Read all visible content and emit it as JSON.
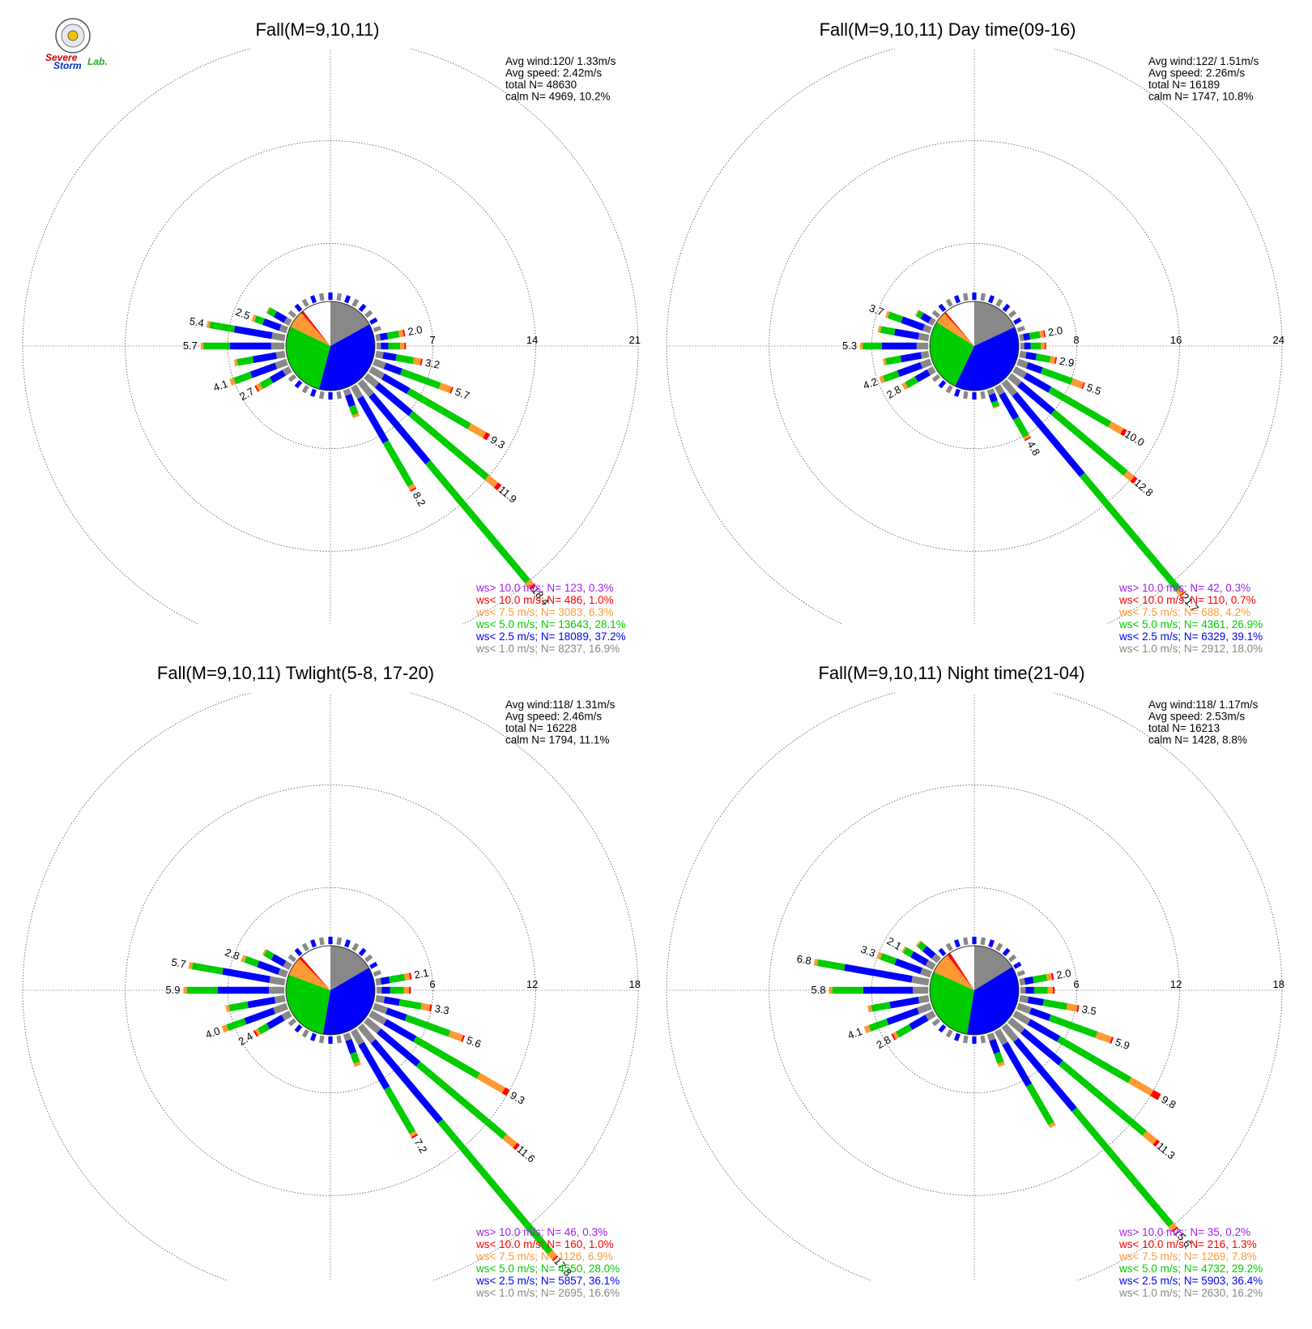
{
  "logo": {
    "line1": "Severe",
    "line2": "Storm",
    "line3": "Lab."
  },
  "chart_data": [
    {
      "type": "wind-rose",
      "title": "Fall(M=9,10,11)",
      "stats": [
        "Avg wind:120/ 1.33m/s",
        "Avg speed: 2.42m/s",
        "total N=      48630",
        "calm N=   4969,  10.2%"
      ],
      "rings": [
        7,
        14,
        21
      ],
      "ring_labels": [
        "7",
        "14",
        "21"
      ],
      "rmax": 21,
      "pie": [
        {
          "category": "gray",
          "fraction": 0.169
        },
        {
          "category": "blue",
          "fraction": 0.372
        },
        {
          "category": "green",
          "fraction": 0.281
        },
        {
          "category": "orange",
          "fraction": 0.063
        },
        {
          "category": "red",
          "fraction": 0.01
        },
        {
          "category": "white",
          "fraction": 0.105
        }
      ],
      "directions_deg": [
        80,
        90,
        100,
        110,
        120,
        130,
        140,
        150,
        160,
        240,
        250,
        260,
        270,
        280,
        290,
        300
      ],
      "totals": [
        2.0,
        2.0,
        3.2,
        5.7,
        9.3,
        11.9,
        18.4,
        8.2,
        2.0,
        2.7,
        4.1,
        3.5,
        5.7,
        5.4,
        2.5,
        1.8
      ],
      "bar_labels": [
        "2.0",
        "",
        "3.2",
        "5.7",
        "9.3",
        "11.9",
        "18.4",
        "8.2",
        "",
        "2.7",
        "4.1",
        "",
        "5.7",
        "5.4",
        "2.5",
        ""
      ],
      "segments": [
        [
          0.3,
          0.5,
          0.8,
          0.3,
          0.1,
          0
        ],
        [
          0.3,
          0.5,
          0.8,
          0.3,
          0.1,
          0
        ],
        [
          0.5,
          0.9,
          1.2,
          0.5,
          0.1,
          0
        ],
        [
          0.8,
          1.2,
          2.8,
          0.8,
          0.1,
          0
        ],
        [
          1.0,
          2.0,
          4.8,
          1.2,
          0.3,
          0
        ],
        [
          1.0,
          3.0,
          6.8,
          0.8,
          0.3,
          0
        ],
        [
          1.2,
          6.0,
          10.6,
          0.4,
          0.2,
          0
        ],
        [
          0.9,
          3.5,
          3.4,
          0.3,
          0.1,
          0
        ],
        [
          0.4,
          0.8,
          0.6,
          0.2,
          0,
          0
        ],
        [
          0.5,
          1.0,
          0.8,
          0.3,
          0.1,
          0
        ],
        [
          0.8,
          1.8,
          1.2,
          0.3,
          0,
          0
        ],
        [
          0.6,
          1.6,
          1.1,
          0.2,
          0,
          0
        ],
        [
          0.9,
          2.8,
          1.8,
          0.2,
          0,
          0
        ],
        [
          0.9,
          2.6,
          1.7,
          0.2,
          0,
          0
        ],
        [
          0.5,
          1.2,
          0.6,
          0.2,
          0,
          0
        ],
        [
          0.4,
          0.8,
          0.5,
          0.1,
          0,
          0
        ]
      ],
      "legend": [
        {
          "text": "ws> 10.0 m/s; N=   123,  0.3%",
          "color": "#a020f0"
        },
        {
          "text": "ws< 10.0 m/s; N=   486,  1.0%",
          "color": "#ff0000"
        },
        {
          "text": "ws<  7.5 m/s; N=  3083,  6.3%",
          "color": "#ff9933"
        },
        {
          "text": "ws<  5.0 m/s; N= 13643, 28.1%",
          "color": "#00cc00"
        },
        {
          "text": "ws<  2.5 m/s; N= 18089, 37.2%",
          "color": "#0000ff"
        },
        {
          "text": "ws<  1.0 m/s; N=  8237, 16.9%",
          "color": "#888888"
        }
      ]
    },
    {
      "type": "wind-rose",
      "title": "Fall(M=9,10,11) Day time(09-16)",
      "stats": [
        "Avg wind:122/ 1.51m/s",
        "Avg speed: 2.26m/s",
        "total N=      16189",
        "calm N=   1747,  10.8%"
      ],
      "rings": [
        8,
        16,
        24
      ],
      "ring_labels": [
        "8",
        "16",
        "24"
      ],
      "rmax": 24,
      "pie": [
        {
          "category": "gray",
          "fraction": 0.18
        },
        {
          "category": "blue",
          "fraction": 0.391
        },
        {
          "category": "green",
          "fraction": 0.269
        },
        {
          "category": "orange",
          "fraction": 0.042
        },
        {
          "category": "red",
          "fraction": 0.007
        },
        {
          "category": "white",
          "fraction": 0.111
        }
      ],
      "directions_deg": [
        80,
        90,
        100,
        110,
        120,
        130,
        140,
        150,
        160,
        240,
        250,
        260,
        270,
        280,
        290,
        300
      ],
      "totals": [
        2.0,
        2.0,
        2.9,
        5.5,
        10.0,
        12.8,
        21.7,
        4.8,
        1.5,
        2.8,
        4.2,
        3.6,
        5.3,
        4.0,
        3.7,
        1.6
      ],
      "bar_labels": [
        "2.0",
        "",
        "2.9",
        "5.5",
        "10.0",
        "12.8",
        "21.7",
        "4.8",
        "",
        "2.8",
        "4.2",
        "",
        "5.3",
        "",
        "3.7",
        ""
      ],
      "segments": [
        [
          0.3,
          0.5,
          0.8,
          0.3,
          0.1,
          0
        ],
        [
          0.3,
          0.5,
          0.8,
          0.3,
          0.1,
          0
        ],
        [
          0.5,
          0.8,
          1.1,
          0.4,
          0.1,
          0
        ],
        [
          0.8,
          1.2,
          2.5,
          0.9,
          0.1,
          0
        ],
        [
          1.0,
          2.2,
          5.4,
          1.1,
          0.3,
          0
        ],
        [
          1.0,
          3.4,
          7.4,
          0.7,
          0.3,
          0
        ],
        [
          1.3,
          8.2,
          11.7,
          0.4,
          0.1,
          0
        ],
        [
          0.7,
          2.2,
          1.6,
          0.2,
          0.1,
          0
        ],
        [
          0.4,
          0.6,
          0.4,
          0.1,
          0,
          0
        ],
        [
          0.5,
          1.1,
          0.9,
          0.3,
          0,
          0
        ],
        [
          0.8,
          1.9,
          1.2,
          0.3,
          0,
          0
        ],
        [
          0.6,
          1.6,
          1.2,
          0.2,
          0,
          0
        ],
        [
          0.9,
          2.7,
          1.5,
          0.2,
          0,
          0
        ],
        [
          0.8,
          1.9,
          1.1,
          0.2,
          0,
          0
        ],
        [
          0.6,
          1.8,
          1.1,
          0.2,
          0,
          0
        ],
        [
          0.4,
          0.7,
          0.4,
          0.1,
          0,
          0
        ]
      ],
      "legend": [
        {
          "text": "ws> 10.0 m/s; N=    42,  0.3%",
          "color": "#a020f0"
        },
        {
          "text": "ws< 10.0 m/s; N=   110,  0.7%",
          "color": "#ff0000"
        },
        {
          "text": "ws<  7.5 m/s; N=   688,  4.2%",
          "color": "#ff9933"
        },
        {
          "text": "ws<  5.0 m/s; N=  4361, 26.9%",
          "color": "#00cc00"
        },
        {
          "text": "ws<  2.5 m/s; N=  6329, 39.1%",
          "color": "#0000ff"
        },
        {
          "text": "ws<  1.0 m/s; N=  2912, 18.0%",
          "color": "#888888"
        }
      ]
    },
    {
      "type": "wind-rose",
      "title": "Fall(M=9,10,11) Twlight(5-8, 17-20)",
      "stats": [
        "Avg wind:118/ 1.31m/s",
        "Avg speed: 2.46m/s",
        "total N=      16228",
        "calm N=   1794,  11.1%"
      ],
      "rings": [
        6,
        12,
        18
      ],
      "ring_labels": [
        "6",
        "12",
        "18"
      ],
      "rmax": 18,
      "pie": [
        {
          "category": "gray",
          "fraction": 0.166
        },
        {
          "category": "blue",
          "fraction": 0.361
        },
        {
          "category": "green",
          "fraction": 0.28
        },
        {
          "category": "orange",
          "fraction": 0.069
        },
        {
          "category": "red",
          "fraction": 0.01
        },
        {
          "category": "white",
          "fraction": 0.114
        }
      ],
      "directions_deg": [
        80,
        90,
        100,
        110,
        120,
        130,
        140,
        150,
        160,
        240,
        250,
        260,
        270,
        280,
        290,
        300
      ],
      "totals": [
        2.1,
        2.0,
        3.3,
        5.6,
        9.3,
        11.6,
        17.8,
        7.2,
        2.0,
        2.4,
        4.0,
        3.5,
        5.9,
        5.7,
        2.8,
        1.8
      ],
      "bar_labels": [
        "2.1",
        "",
        "3.3",
        "5.6",
        "9.3",
        "11.6",
        "17.8",
        "7.2",
        "",
        "2.4",
        "4.0",
        "",
        "5.9",
        "5.7",
        "2.8",
        ""
      ],
      "segments": [
        [
          0.3,
          0.5,
          0.9,
          0.3,
          0.1,
          0
        ],
        [
          0.3,
          0.5,
          0.8,
          0.3,
          0.1,
          0
        ],
        [
          0.5,
          0.9,
          1.3,
          0.5,
          0.1,
          0
        ],
        [
          0.8,
          1.2,
          2.7,
          0.8,
          0.1,
          0
        ],
        [
          1.0,
          2.0,
          4.3,
          1.7,
          0.3,
          0
        ],
        [
          1.0,
          3.0,
          6.6,
          0.8,
          0.2,
          0
        ],
        [
          1.2,
          6.1,
          10.0,
          0.4,
          0.1,
          0
        ],
        [
          0.9,
          3.0,
          3.0,
          0.2,
          0.1,
          0
        ],
        [
          0.4,
          0.8,
          0.6,
          0.2,
          0,
          0
        ],
        [
          0.5,
          1.0,
          0.6,
          0.2,
          0.1,
          0
        ],
        [
          0.8,
          1.8,
          1.1,
          0.3,
          0,
          0
        ],
        [
          0.6,
          1.6,
          1.1,
          0.2,
          0,
          0
        ],
        [
          0.9,
          3.0,
          1.8,
          0.2,
          0,
          0
        ],
        [
          0.9,
          2.8,
          1.8,
          0.2,
          0,
          0
        ],
        [
          0.5,
          1.3,
          0.8,
          0.2,
          0,
          0
        ],
        [
          0.4,
          0.8,
          0.5,
          0.1,
          0,
          0
        ]
      ],
      "legend": [
        {
          "text": "ws> 10.0 m/s; N=    46,  0.3%",
          "color": "#a020f0"
        },
        {
          "text": "ws< 10.0 m/s; N=   160,  1.0%",
          "color": "#ff0000"
        },
        {
          "text": "ws<  7.5 m/s; N=  1126,  6.9%",
          "color": "#ff9933"
        },
        {
          "text": "ws<  5.0 m/s; N=  4550, 28.0%",
          "color": "#00cc00"
        },
        {
          "text": "ws<  2.5 m/s; N=  5857, 36.1%",
          "color": "#0000ff"
        },
        {
          "text": "ws<  1.0 m/s; N=  2695, 16.6%",
          "color": "#888888"
        }
      ]
    },
    {
      "type": "wind-rose",
      "title": "Fall(M=9,10,11) Night time(21-04)",
      "stats": [
        "Avg wind:118/ 1.17m/s",
        "Avg speed: 2.53m/s",
        "total N=      16213",
        "calm N=   1428,   8.8%"
      ],
      "rings": [
        6,
        12,
        18
      ],
      "ring_labels": [
        "6",
        "12",
        "18"
      ],
      "rmax": 18,
      "pie": [
        {
          "category": "gray",
          "fraction": 0.162
        },
        {
          "category": "blue",
          "fraction": 0.364
        },
        {
          "category": "green",
          "fraction": 0.292
        },
        {
          "category": "orange",
          "fraction": 0.078
        },
        {
          "category": "red",
          "fraction": 0.013
        },
        {
          "category": "white",
          "fraction": 0.091
        }
      ],
      "directions_deg": [
        80,
        90,
        100,
        110,
        120,
        130,
        140,
        150,
        160,
        240,
        250,
        260,
        270,
        280,
        290,
        300,
        310
      ],
      "totals": [
        2.0,
        2.0,
        3.5,
        5.9,
        9.8,
        11.3,
        15.6,
        6.5,
        2.0,
        2.8,
        4.1,
        3.6,
        5.8,
        6.8,
        3.3,
        2.1,
        1.6
      ],
      "bar_labels": [
        "2.0",
        "",
        "3.5",
        "5.9",
        "9.8",
        "11.3",
        "15.6",
        "",
        "",
        "2.8",
        "4.1",
        "",
        "5.8",
        "6.8",
        "3.3",
        "2.1",
        ""
      ],
      "segments": [
        [
          0.3,
          0.5,
          0.8,
          0.3,
          0.1,
          0
        ],
        [
          0.3,
          0.5,
          0.8,
          0.3,
          0.1,
          0
        ],
        [
          0.5,
          0.9,
          1.4,
          0.6,
          0.1,
          0
        ],
        [
          0.8,
          1.2,
          2.9,
          0.9,
          0.1,
          0
        ],
        [
          1.0,
          2.0,
          4.8,
          1.5,
          0.5,
          0
        ],
        [
          1.0,
          2.9,
          6.4,
          0.8,
          0.2,
          0
        ],
        [
          1.1,
          5.3,
          8.8,
          0.3,
          0.1,
          0
        ],
        [
          0.9,
          2.8,
          2.6,
          0.2,
          0,
          0
        ],
        [
          0.4,
          0.8,
          0.6,
          0.2,
          0,
          0
        ],
        [
          0.5,
          1.1,
          0.9,
          0.2,
          0.1,
          0
        ],
        [
          0.8,
          1.9,
          1.1,
          0.3,
          0,
          0
        ],
        [
          0.6,
          1.7,
          1.1,
          0.2,
          0,
          0
        ],
        [
          0.9,
          2.9,
          1.8,
          0.2,
          0,
          0
        ],
        [
          1.0,
          4.0,
          1.6,
          0.2,
          0,
          0
        ],
        [
          0.6,
          1.6,
          0.9,
          0.2,
          0,
          0
        ],
        [
          0.5,
          1.0,
          0.5,
          0.1,
          0,
          0
        ],
        [
          0.4,
          0.7,
          0.4,
          0.1,
          0,
          0
        ]
      ],
      "legend": [
        {
          "text": "ws> 10.0 m/s; N=    35,  0.2%",
          "color": "#a020f0"
        },
        {
          "text": "ws< 10.0 m/s; N=   216,  1.3%",
          "color": "#ff0000"
        },
        {
          "text": "ws<  7.5 m/s; N=  1269,  7.8%",
          "color": "#ff9933"
        },
        {
          "text": "ws<  5.0 m/s; N=  4732, 29.2%",
          "color": "#00cc00"
        },
        {
          "text": "ws<  2.5 m/s; N=  5903, 36.4%",
          "color": "#0000ff"
        },
        {
          "text": "ws<  1.0 m/s; N=  2630, 16.2%",
          "color": "#888888"
        }
      ]
    }
  ],
  "colors": {
    "gray": "#888888",
    "blue": "#0000ff",
    "green": "#00cc00",
    "orange": "#ff9933",
    "red": "#ff0000",
    "purple": "#a020f0",
    "white": "#ffffff"
  }
}
